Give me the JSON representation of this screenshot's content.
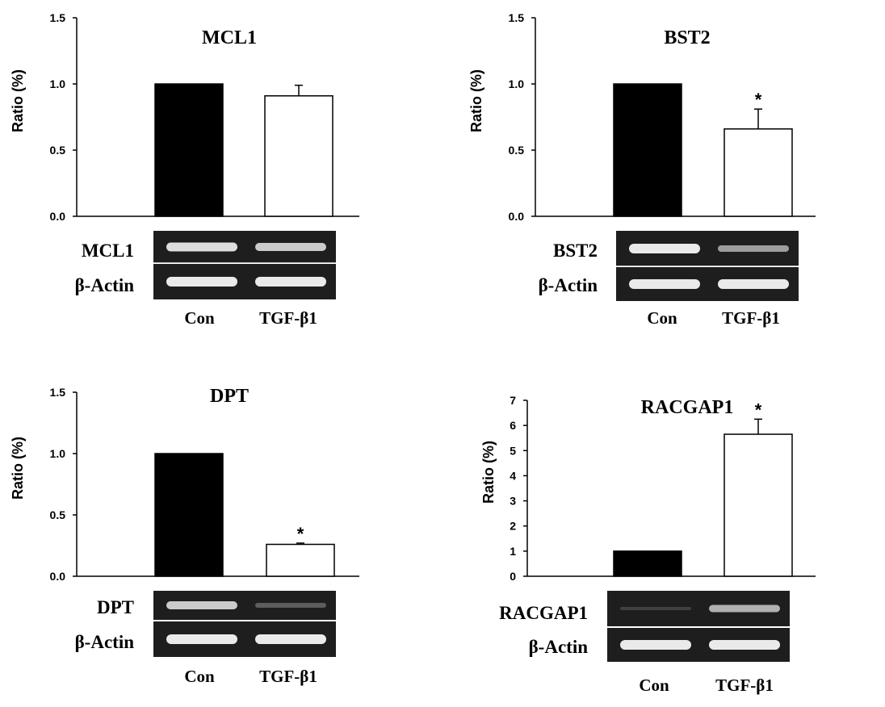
{
  "colors": {
    "control_bar": "#000000",
    "treated_bar": "#ffffff",
    "gel_background": "#1e1e1e",
    "gel_band": "#f2f2f2"
  },
  "chart_data": [
    {
      "type": "bar",
      "title": "MCL1",
      "ylabel": "Ratio (%)",
      "categories": [
        "Con",
        "TGF-β1"
      ],
      "values": [
        1.0,
        0.91
      ],
      "errors": [
        0,
        0.08
      ],
      "significance": [
        "",
        ""
      ],
      "ylim": [
        0,
        1.5
      ],
      "yticks": [
        0,
        0.5,
        1.0,
        1.5
      ],
      "ytick_labels": [
        "0.0",
        "0.5",
        "1.0",
        "1.5"
      ],
      "grid": false,
      "gel": {
        "rows": [
          {
            "label": "MCL1",
            "bands": [
              0.9,
              0.8
            ]
          },
          {
            "label": "β-Actin",
            "bands": [
              0.95,
              0.95
            ]
          }
        ]
      }
    },
    {
      "type": "bar",
      "title": "BST2",
      "ylabel": "Ratio (%)",
      "categories": [
        "Con",
        "TGF-β1"
      ],
      "values": [
        1.0,
        0.66
      ],
      "errors": [
        0,
        0.15
      ],
      "significance": [
        "",
        "*"
      ],
      "ylim": [
        0,
        1.5
      ],
      "yticks": [
        0,
        0.5,
        1.0,
        1.5
      ],
      "ytick_labels": [
        "0.0",
        "0.5",
        "1.0",
        "1.5"
      ],
      "grid": false,
      "gel": {
        "rows": [
          {
            "label": "BST2",
            "bands": [
              0.95,
              0.55
            ]
          },
          {
            "label": "β-Actin",
            "bands": [
              0.95,
              0.95
            ]
          }
        ]
      }
    },
    {
      "type": "bar",
      "title": "DPT",
      "ylabel": "Ratio (%)",
      "categories": [
        "Con",
        "TGF-β1"
      ],
      "values": [
        1.0,
        0.26
      ],
      "errors": [
        0,
        0.01
      ],
      "significance": [
        "",
        "*"
      ],
      "ylim": [
        0,
        1.5
      ],
      "yticks": [
        0,
        0.5,
        1.0,
        1.5
      ],
      "ytick_labels": [
        "0.0",
        "0.5",
        "1.0",
        "1.5"
      ],
      "grid": false,
      "gel": {
        "rows": [
          {
            "label": "DPT",
            "bands": [
              0.8,
              0.2
            ]
          },
          {
            "label": "β-Actin",
            "bands": [
              0.95,
              0.95
            ]
          }
        ]
      }
    },
    {
      "type": "bar",
      "title": "RACGAP1",
      "ylabel": "Ratio (%)",
      "categories": [
        "Con",
        "TGF-β1"
      ],
      "values": [
        1.0,
        5.65
      ],
      "errors": [
        0,
        0.6
      ],
      "significance": [
        "",
        "*"
      ],
      "ylim": [
        0,
        7
      ],
      "yticks": [
        0,
        1,
        2,
        3,
        4,
        5,
        6,
        7
      ],
      "ytick_labels": [
        "0",
        "1",
        "2",
        "3",
        "4",
        "5",
        "6",
        "7"
      ],
      "grid": false,
      "gel": {
        "rows": [
          {
            "label": "RACGAP1",
            "bands": [
              0.05,
              0.65
            ]
          },
          {
            "label": "β-Actin",
            "bands": [
              0.95,
              0.95
            ]
          }
        ]
      }
    }
  ]
}
